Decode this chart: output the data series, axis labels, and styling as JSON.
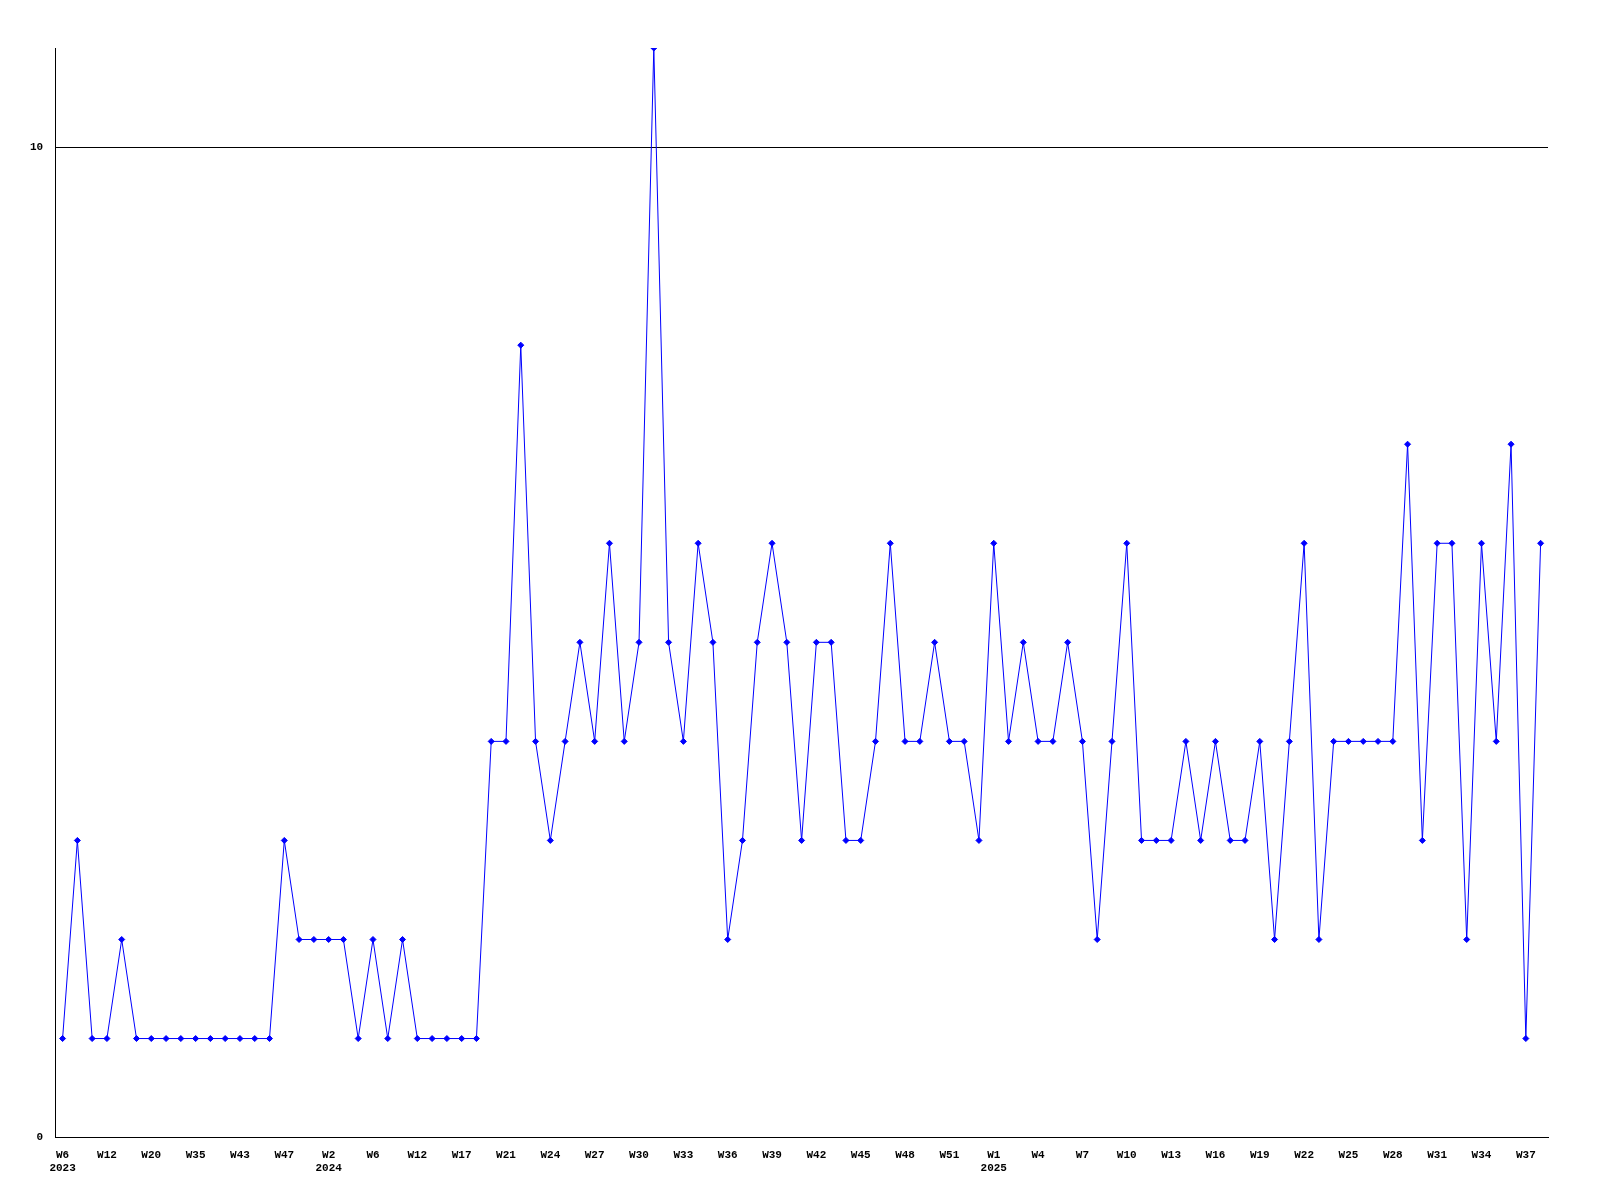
{
  "chart_data": {
    "type": "line",
    "categories": [
      "W6\n2023",
      null,
      null,
      "W12",
      null,
      null,
      "W20",
      null,
      null,
      "W35",
      null,
      null,
      "W43",
      null,
      null,
      "W47",
      null,
      null,
      "W2\n2024",
      null,
      null,
      "W6",
      null,
      null,
      "W12",
      null,
      null,
      "W17",
      null,
      null,
      "W21",
      null,
      null,
      "W24",
      null,
      null,
      "W27",
      null,
      null,
      "W30",
      null,
      null,
      "W33",
      null,
      null,
      "W36",
      null,
      null,
      "W39",
      null,
      null,
      "W42",
      null,
      null,
      "W45",
      null,
      null,
      "W48",
      null,
      null,
      "W51",
      null,
      null,
      "W1\n2025",
      null,
      null,
      "W4",
      null,
      null,
      "W7",
      null,
      null,
      "W10",
      null,
      null,
      "W13",
      null,
      null,
      "W16",
      null,
      null,
      "W19",
      null,
      null,
      "W22",
      null,
      null,
      "W25",
      null,
      null,
      "W28",
      null,
      null,
      "W31",
      null,
      null,
      "W34",
      null,
      null,
      "W37",
      null
    ],
    "series": [
      {
        "color": "#0000ff",
        "values": [
          1,
          3,
          1,
          1,
          2,
          1,
          1,
          1,
          1,
          1,
          1,
          1,
          1,
          1,
          1,
          3,
          2,
          2,
          2,
          2,
          1,
          2,
          1,
          2,
          1,
          1,
          1,
          1,
          1,
          4,
          4,
          8,
          4,
          3,
          4,
          5,
          4,
          6,
          4,
          5,
          11,
          5,
          4,
          6,
          5,
          2,
          3,
          5,
          6,
          5,
          3,
          5,
          5,
          3,
          3,
          4,
          6,
          4,
          4,
          5,
          4,
          4,
          3,
          6,
          4,
          5,
          4,
          4,
          5,
          4,
          2,
          4,
          6,
          3,
          3,
          3,
          4,
          3,
          4,
          3,
          3,
          4,
          2,
          4,
          6,
          2,
          4,
          4,
          4,
          4,
          4,
          7,
          3,
          6,
          6,
          2,
          6,
          4,
          7,
          1,
          6
        ]
      }
    ],
    "ylim": [
      0,
      11
    ],
    "yticks": [
      0,
      10
    ],
    "grid": "y",
    "marker": "diamond",
    "line_style": "solid"
  }
}
